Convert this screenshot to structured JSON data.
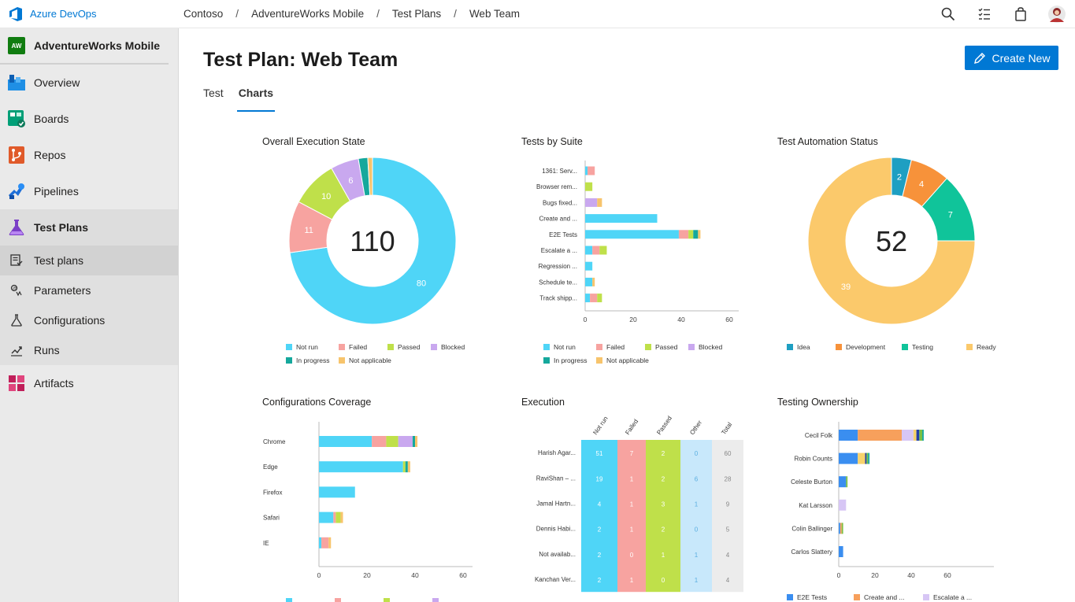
{
  "brand": {
    "name": "Azure DevOps"
  },
  "breadcrumb": [
    "Contoso",
    "AdventureWorks Mobile",
    "Test Plans",
    "Web Team"
  ],
  "project": {
    "badge": "AW",
    "name": "AdventureWorks Mobile"
  },
  "nav": {
    "overview": "Overview",
    "boards": "Boards",
    "repos": "Repos",
    "pipelines": "Pipelines",
    "test_plans": "Test Plans",
    "sub": {
      "test_plans": "Test plans",
      "parameters": "Parameters",
      "configurations": "Configurations",
      "runs": "Runs"
    },
    "artifacts": "Artifacts"
  },
  "page": {
    "title": "Test Plan: Web Team",
    "create_label": "Create New",
    "tabs": [
      "Test",
      "Charts"
    ]
  },
  "colors": {
    "not_run": "#4fd5f7",
    "failed": "#f7a3a0",
    "passed": "#bfe04a",
    "blocked": "#c9a8ef",
    "in_progress": "#15a89c",
    "not_applicable": "#f7c46c",
    "idea": "#1e9fc2",
    "development": "#f7923a",
    "testing": "#10c49a",
    "ready": "#fbc96b",
    "accent": "#0078d4"
  },
  "chart_data": [
    {
      "type": "pie",
      "title": "Overall Execution State",
      "center_value": "110",
      "slices": [
        {
          "name": "Not run",
          "value": 80
        },
        {
          "name": "Failed",
          "value": 11
        },
        {
          "name": "Passed",
          "value": 10
        },
        {
          "name": "Blocked",
          "value": 6
        },
        {
          "name": "In progress",
          "value": 2
        },
        {
          "name": "Not applicable",
          "value": 1
        }
      ],
      "legend": [
        "Not run",
        "Failed",
        "Passed",
        "Blocked",
        "In progress",
        "Not applicable"
      ]
    },
    {
      "type": "bar",
      "title": "Tests by Suite",
      "orientation": "horizontal",
      "categories": [
        "1361: Serv...",
        "Browser rem...",
        "Bugs fixed...",
        "Create and ...",
        "E2E Tests",
        "Escalate a ...",
        "Regression ...",
        "Schedule te...",
        "Track shipp..."
      ],
      "series": [
        {
          "name": "Not run",
          "values": [
            1,
            0,
            0,
            30,
            39,
            3,
            3,
            3,
            2
          ]
        },
        {
          "name": "Failed",
          "values": [
            3,
            0,
            0,
            0,
            4,
            3,
            0,
            0,
            3
          ]
        },
        {
          "name": "Passed",
          "values": [
            0,
            3,
            0,
            0,
            2,
            3,
            0,
            0,
            2
          ]
        },
        {
          "name": "Blocked",
          "values": [
            0,
            0,
            5,
            0,
            0,
            0,
            0,
            0,
            0
          ]
        },
        {
          "name": "In progress",
          "values": [
            0,
            0,
            0,
            0,
            2,
            0,
            0,
            0,
            0
          ]
        },
        {
          "name": "Not applicable",
          "values": [
            0,
            0,
            2,
            0,
            1,
            0,
            0,
            1,
            0
          ]
        }
      ],
      "ticks": [
        0,
        20,
        40,
        60
      ],
      "xlim": [
        0,
        60
      ],
      "legend": [
        "Not run",
        "Failed",
        "Passed",
        "Blocked",
        "In progress",
        "Not applicable"
      ]
    },
    {
      "type": "pie",
      "title": "Test Automation Status",
      "center_value": "52",
      "slices": [
        {
          "name": "Idea",
          "value": 2
        },
        {
          "name": "Development",
          "value": 4
        },
        {
          "name": "Testing",
          "value": 7
        },
        {
          "name": "Ready",
          "value": 39
        }
      ],
      "legend": [
        "Idea",
        "Development",
        "Testing",
        "Ready"
      ]
    },
    {
      "type": "bar",
      "title": "Configurations Coverage",
      "orientation": "horizontal",
      "categories": [
        "Chrome",
        "Edge",
        "Firefox",
        "Safari",
        "IE"
      ],
      "series": [
        {
          "name": "Not run",
          "values": [
            22,
            35,
            15,
            6,
            1
          ]
        },
        {
          "name": "Failed",
          "values": [
            6,
            0,
            0,
            1,
            3
          ]
        },
        {
          "name": "Passed",
          "values": [
            5,
            1,
            0,
            2,
            0
          ]
        },
        {
          "name": "Blocked",
          "values": [
            6,
            0,
            0,
            0,
            0
          ]
        },
        {
          "name": "In progress",
          "values": [
            1,
            1,
            0,
            0,
            0
          ]
        },
        {
          "name": "Not applicable",
          "values": [
            1,
            1,
            0,
            1,
            1
          ]
        }
      ],
      "ticks": [
        0,
        20,
        40,
        60
      ],
      "xlim": [
        0,
        60
      ]
    },
    {
      "type": "table",
      "title": "Execution",
      "columns": [
        "Not run",
        "Failed",
        "Passed",
        "Other",
        "Total"
      ],
      "rows": [
        {
          "name": "Harish Agar...",
          "values": [
            51,
            7,
            2,
            0,
            60
          ]
        },
        {
          "name": "RaviShan – ...",
          "values": [
            19,
            1,
            2,
            6,
            28
          ]
        },
        {
          "name": "Jamal Hartn...",
          "values": [
            4,
            1,
            3,
            1,
            9
          ]
        },
        {
          "name": "Dennis Habi...",
          "values": [
            2,
            1,
            2,
            0,
            5
          ]
        },
        {
          "name": "Not availab...",
          "values": [
            2,
            0,
            1,
            1,
            4
          ]
        },
        {
          "name": "Kanchan Ver...",
          "values": [
            2,
            1,
            0,
            1,
            4
          ]
        }
      ]
    },
    {
      "type": "bar",
      "title": "Testing Ownership",
      "orientation": "horizontal",
      "categories": [
        "Cecil Folk",
        "Robin Counts",
        "Celeste Burton",
        "Kat Larsson",
        "Colin Ballinger",
        "Carlos Slattery"
      ],
      "series": [
        {
          "name": "E2E Tests",
          "values": [
            13,
            13,
            5,
            0,
            1,
            3
          ]
        },
        {
          "name": "Create and ...",
          "values": [
            30,
            0,
            0,
            0,
            1,
            0
          ]
        },
        {
          "name": "Escalate a ...",
          "values": [
            8,
            0,
            0,
            5,
            0,
            0
          ]
        },
        {
          "name": "",
          "values": [
            2,
            5,
            0,
            0,
            0,
            0
          ]
        },
        {
          "name": "",
          "values": [
            2,
            1,
            0,
            0,
            0,
            0
          ]
        },
        {
          "name": "",
          "values": [
            2,
            1,
            1,
            0,
            1,
            0
          ]
        },
        {
          "name": "",
          "values": [
            1,
            1,
            0,
            0,
            0,
            0
          ]
        }
      ],
      "ticks": [
        0,
        20,
        40,
        60
      ],
      "xlim": [
        0,
        86
      ],
      "legend": [
        "E2E Tests",
        "Create and ...",
        "Escalate a ..."
      ]
    }
  ]
}
